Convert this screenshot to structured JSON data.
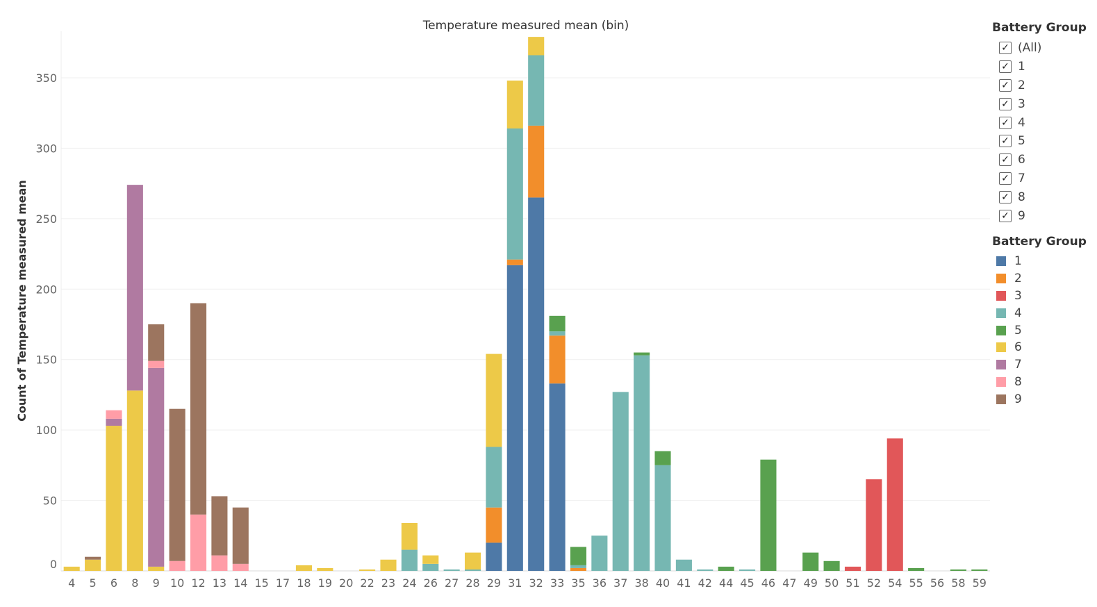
{
  "chart_data": {
    "type": "bar",
    "stacked": true,
    "title": "Temperature measured mean (bin)",
    "xlabel": "",
    "ylabel": "Count of Temperature measured mean",
    "ylim": [
      0,
      383
    ],
    "yticks": [
      0,
      50,
      100,
      150,
      200,
      250,
      300,
      350
    ],
    "grid": true,
    "legend_position": "right",
    "categories": [
      "4",
      "5",
      "6",
      "8",
      "9",
      "10",
      "12",
      "13",
      "14",
      "15",
      "17",
      "18",
      "19",
      "20",
      "22",
      "23",
      "24",
      "26",
      "27",
      "28",
      "29",
      "31",
      "32",
      "33",
      "35",
      "36",
      "37",
      "38",
      "40",
      "41",
      "42",
      "44",
      "45",
      "46",
      "47",
      "49",
      "50",
      "51",
      "52",
      "54",
      "55",
      "56",
      "58",
      "59"
    ],
    "series": [
      {
        "name": "1",
        "color": "#4e79a7",
        "values": [
          0,
          0,
          0,
          0,
          0,
          0,
          0,
          0,
          0,
          0,
          0,
          0,
          0,
          0,
          0,
          0,
          0,
          0,
          0,
          0,
          20,
          217,
          265,
          133,
          0,
          0,
          0,
          0,
          0,
          0,
          0,
          0,
          0,
          0,
          0,
          0,
          0,
          0,
          0,
          0,
          0,
          0,
          0,
          0
        ]
      },
      {
        "name": "2",
        "color": "#f28e2b",
        "values": [
          0,
          0,
          0,
          0,
          0,
          0,
          0,
          0,
          0,
          0,
          0,
          0,
          0,
          0,
          0,
          0,
          0,
          0,
          0,
          0,
          25,
          4,
          51,
          34,
          2,
          0,
          0,
          0,
          0,
          0,
          0,
          0,
          0,
          0,
          0,
          0,
          0,
          0,
          0,
          0,
          0,
          0,
          0,
          0
        ]
      },
      {
        "name": "3",
        "color": "#e15759",
        "values": [
          0,
          0,
          0,
          0,
          0,
          0,
          0,
          0,
          0,
          0,
          0,
          0,
          0,
          0,
          0,
          0,
          0,
          0,
          0,
          0,
          0,
          0,
          0,
          0,
          0,
          0,
          0,
          0,
          0,
          0,
          0,
          0,
          0,
          0,
          0,
          0,
          0,
          3,
          65,
          94,
          0,
          0,
          0,
          0
        ]
      },
      {
        "name": "4",
        "color": "#76b7b2",
        "values": [
          0,
          0,
          0,
          0,
          0,
          0,
          0,
          0,
          0,
          0,
          0,
          0,
          0,
          0,
          0,
          0,
          15,
          5,
          1,
          1,
          43,
          93,
          50,
          3,
          2,
          25,
          127,
          153,
          75,
          8,
          1,
          0,
          1,
          0,
          0,
          0,
          0,
          0,
          0,
          0,
          0,
          0,
          0,
          0
        ]
      },
      {
        "name": "5",
        "color": "#59a14f",
        "values": [
          0,
          0,
          0,
          0,
          0,
          0,
          0,
          0,
          0,
          0,
          0,
          0,
          0,
          0,
          0,
          0,
          0,
          0,
          0,
          0,
          0,
          0,
          0,
          11,
          13,
          0,
          0,
          2,
          10,
          0,
          0,
          3,
          0,
          79,
          0,
          13,
          7,
          0,
          0,
          0,
          2,
          0,
          1,
          1
        ]
      },
      {
        "name": "6",
        "color": "#edc948",
        "values": [
          3,
          8,
          103,
          128,
          3,
          0,
          0,
          0,
          0,
          0,
          0,
          4,
          2,
          0,
          1,
          8,
          19,
          6,
          0,
          12,
          66,
          34,
          13,
          0,
          0,
          0,
          0,
          0,
          0,
          0,
          0,
          0,
          0,
          0,
          0,
          0,
          0,
          0,
          0,
          0,
          0,
          0,
          0,
          0
        ]
      },
      {
        "name": "7",
        "color": "#b07aa1",
        "values": [
          0,
          0,
          5,
          146,
          141,
          0,
          0,
          0,
          0,
          0,
          0,
          0,
          0,
          0,
          0,
          0,
          0,
          0,
          0,
          0,
          0,
          0,
          0,
          0,
          0,
          0,
          0,
          0,
          0,
          0,
          0,
          0,
          0,
          0,
          0,
          0,
          0,
          0,
          0,
          0,
          0,
          0,
          0,
          0
        ]
      },
      {
        "name": "8",
        "color": "#ff9da7",
        "values": [
          0,
          0,
          6,
          0,
          5,
          7,
          40,
          11,
          5,
          0,
          0,
          0,
          0,
          0,
          0,
          0,
          0,
          0,
          0,
          0,
          0,
          0,
          0,
          0,
          0,
          0,
          0,
          0,
          0,
          0,
          0,
          0,
          0,
          0,
          0,
          0,
          0,
          0,
          0,
          0,
          0,
          0,
          0,
          0
        ]
      },
      {
        "name": "9",
        "color": "#9c755f",
        "values": [
          0,
          2,
          0,
          0,
          26,
          108,
          150,
          42,
          40,
          0,
          0,
          0,
          0,
          0,
          0,
          0,
          0,
          0,
          0,
          0,
          0,
          0,
          0,
          0,
          0,
          0,
          0,
          0,
          0,
          0,
          0,
          0,
          0,
          0,
          0,
          0,
          0,
          0,
          0,
          0,
          0,
          0,
          0,
          0
        ]
      }
    ]
  },
  "filter_legend": {
    "title": "Battery Group",
    "items": [
      {
        "label": "(All)",
        "checked": true
      },
      {
        "label": "1",
        "checked": true
      },
      {
        "label": "2",
        "checked": true
      },
      {
        "label": "3",
        "checked": true
      },
      {
        "label": "4",
        "checked": true
      },
      {
        "label": "5",
        "checked": true
      },
      {
        "label": "6",
        "checked": true
      },
      {
        "label": "7",
        "checked": true
      },
      {
        "label": "8",
        "checked": true
      },
      {
        "label": "9",
        "checked": true
      }
    ],
    "check_glyph": "✓"
  },
  "color_legend": {
    "title": "Battery Group",
    "items": [
      {
        "label": "1",
        "color": "#4e79a7"
      },
      {
        "label": "2",
        "color": "#f28e2b"
      },
      {
        "label": "3",
        "color": "#e15759"
      },
      {
        "label": "4",
        "color": "#76b7b2"
      },
      {
        "label": "5",
        "color": "#59a14f"
      },
      {
        "label": "6",
        "color": "#edc948"
      },
      {
        "label": "7",
        "color": "#b07aa1"
      },
      {
        "label": "8",
        "color": "#ff9da7"
      },
      {
        "label": "9",
        "color": "#9c755f"
      }
    ]
  }
}
